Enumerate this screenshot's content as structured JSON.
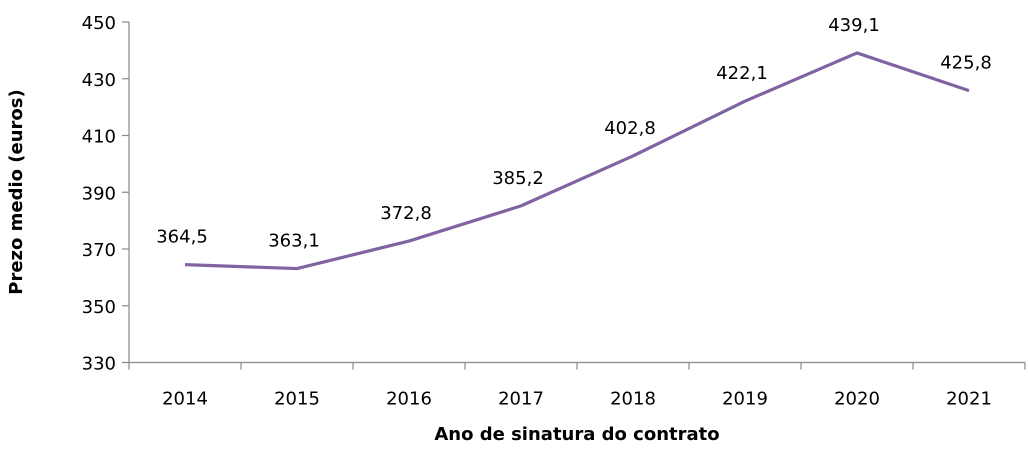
{
  "chart_data": {
    "type": "line",
    "title": "",
    "xlabel": "Ano de sinatura do contrato",
    "ylabel": "Prezo medio (euros)",
    "categories": [
      "2014",
      "2015",
      "2016",
      "2017",
      "2018",
      "2019",
      "2020",
      "2021"
    ],
    "series": [
      {
        "name": "Prezo medio",
        "values": [
          364.5,
          363.1,
          372.8,
          385.2,
          402.8,
          422.1,
          439.1,
          425.8
        ],
        "labels": [
          "364,5",
          "363,1",
          "372,8",
          "385,2",
          "402,8",
          "422,1",
          "439,1",
          "425,8"
        ]
      }
    ],
    "ylim": [
      330,
      450
    ],
    "yticks": [
      330,
      350,
      370,
      390,
      410,
      430,
      450
    ],
    "grid": false,
    "legend": "none",
    "colors": {
      "line": "#8064A2",
      "axis": "#888888"
    }
  }
}
